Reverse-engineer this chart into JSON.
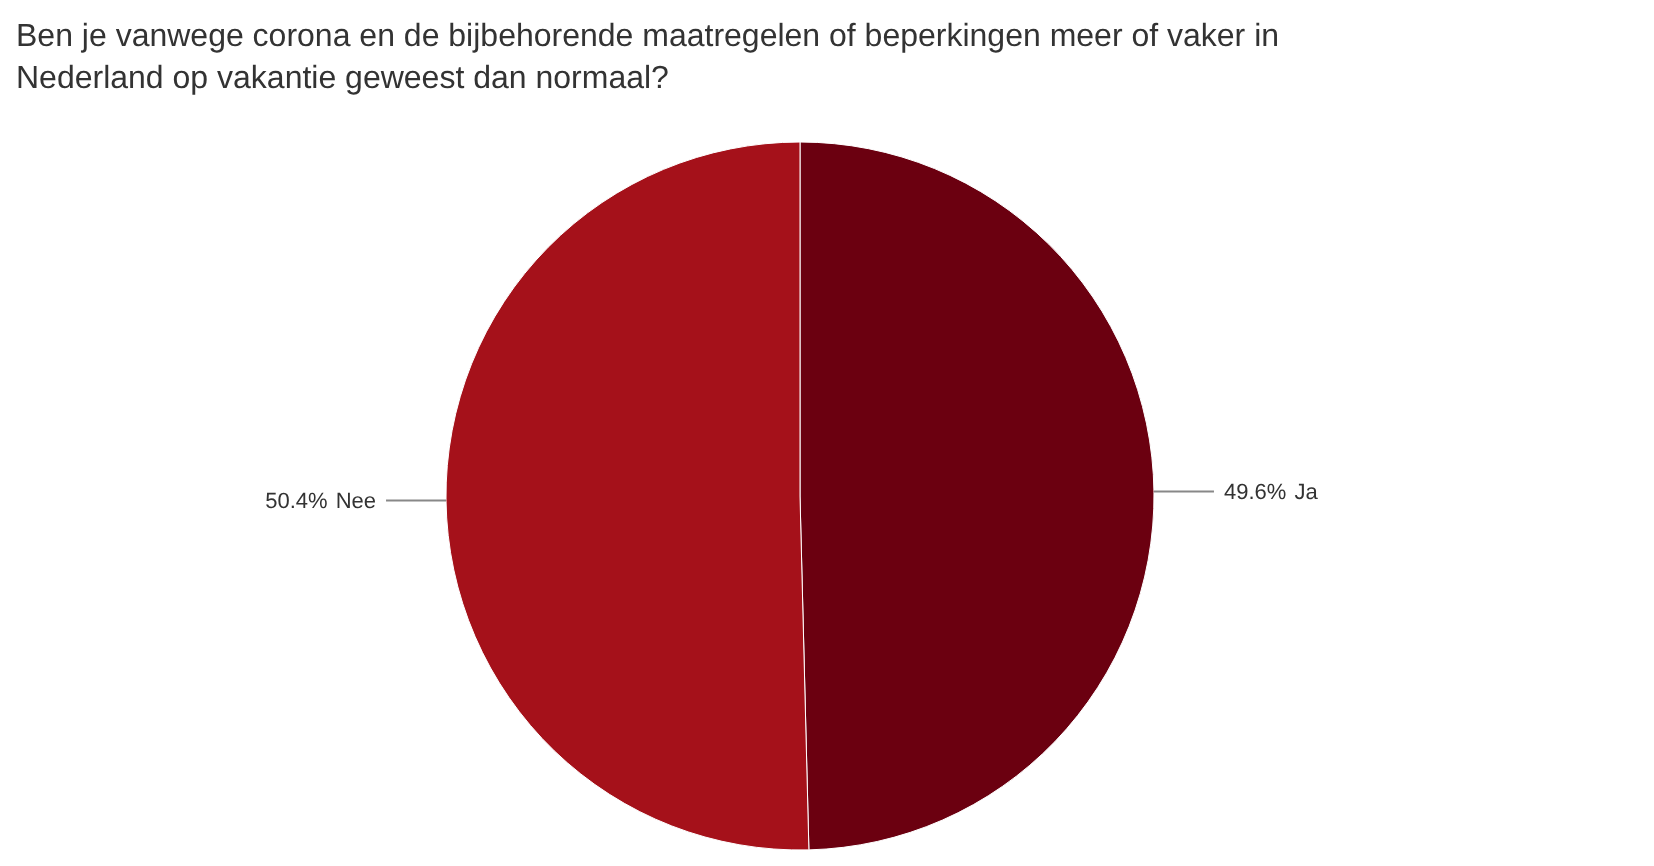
{
  "chart_data": {
    "type": "pie",
    "title": "Ben je vanwege corona en de bijbehorende maatregelen of beperkingen meer of vaker in Nederland op vakantie geweest dan normaal?",
    "categories": [
      "Ja",
      "Nee"
    ],
    "values": [
      49.6,
      50.4
    ],
    "colors": [
      "#6b0010",
      "#a5111a"
    ],
    "value_labels": [
      "49.6%",
      "50.4%"
    ]
  }
}
